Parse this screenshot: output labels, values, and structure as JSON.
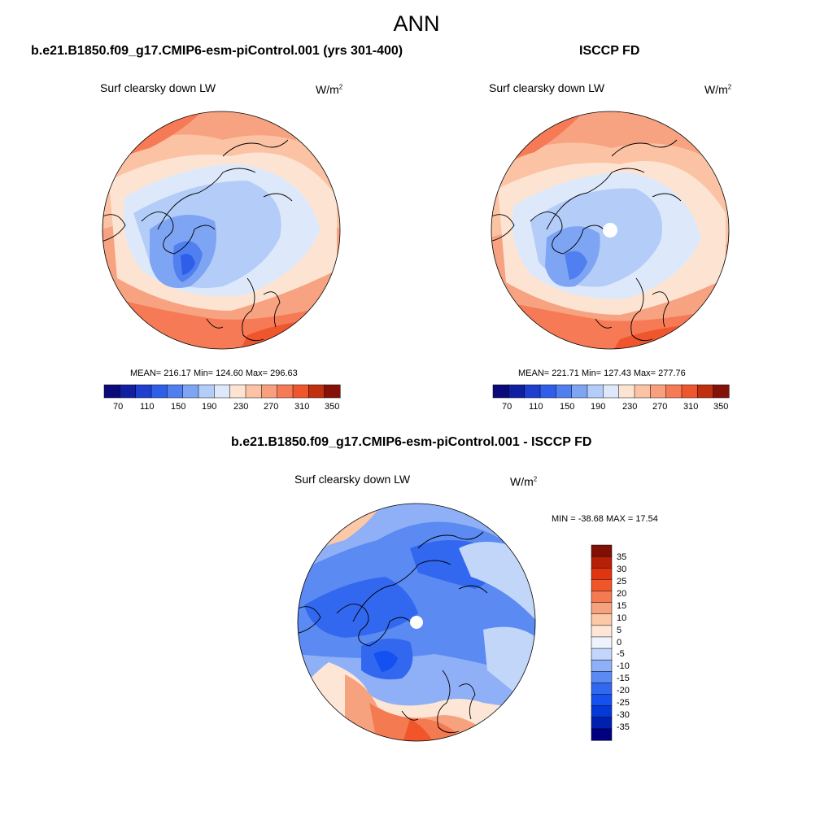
{
  "title": "ANN",
  "panels": [
    {
      "case_title": "b.e21.B1850.f09_g17.CMIP6-esm-piControl.001 (yrs 301-400)",
      "field": "Surf clearsky down LW",
      "units_base": "W/m",
      "units_sup": "2",
      "stats": "MEAN= 216.17  Min= 124.60  Max= 296.63",
      "colorbar_ticks": [
        "70",
        "110",
        "150",
        "190",
        "230",
        "270",
        "310",
        "350"
      ]
    },
    {
      "case_title": "ISCCP FD",
      "field": "Surf clearsky down LW",
      "units_base": "W/m",
      "units_sup": "2",
      "stats": "MEAN= 221.71  Min= 127.43  Max= 277.76",
      "colorbar_ticks": [
        "70",
        "110",
        "150",
        "190",
        "230",
        "270",
        "310",
        "350"
      ]
    }
  ],
  "diff_panel": {
    "case_title": "b.e21.B1850.f09_g17.CMIP6-esm-piControl.001 - ISCCP FD",
    "field": "Surf clearsky down LW",
    "units_base": "W/m",
    "units_sup": "2",
    "stats": "MIN = -38.68 MAX =  17.54",
    "colorbar_ticks": [
      "35",
      "30",
      "25",
      "20",
      "15",
      "10",
      "5",
      "0",
      "-5",
      "-10",
      "-15",
      "-20",
      "-25",
      "-30",
      "-35"
    ]
  },
  "colors": {
    "abs_scale": [
      "#0a0a7a",
      "#1020a0",
      "#1f3fd0",
      "#2f5fe8",
      "#5080f0",
      "#7ea4f4",
      "#b3cdf8",
      "#dde9fb",
      "#fde4d2",
      "#fbc3a4",
      "#f8a07d",
      "#f57a55",
      "#f0562d",
      "#c03010",
      "#851208"
    ],
    "diff_scale": [
      "#000080",
      "#0020b0",
      "#0538d8",
      "#1550f0",
      "#3268f0",
      "#5a8af2",
      "#8fb0f6",
      "#c2d6fa",
      "#eef4fd",
      "#fde6d5",
      "#fbc8a8",
      "#f7a27e",
      "#f47a52",
      "#f0562a",
      "#e03510",
      "#b52006",
      "#801005"
    ]
  }
}
